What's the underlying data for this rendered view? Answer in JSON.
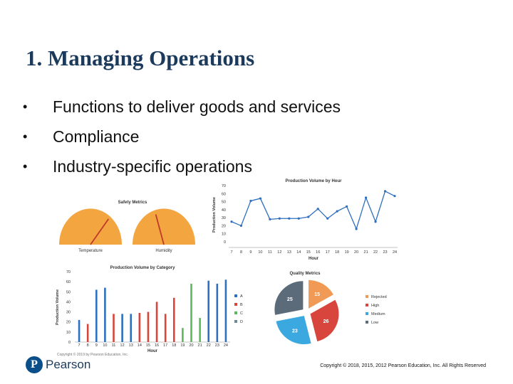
{
  "slide": {
    "title": "1. Managing Operations",
    "bullets": [
      {
        "marker": "•",
        "text": "Functions to deliver goods and services"
      },
      {
        "marker": "•",
        "text": "Compliance"
      },
      {
        "marker": "•",
        "text": "Industry-specific operations"
      }
    ]
  },
  "figure": {
    "small_copyright": "Copyright © 2019 by Pearson Education, Inc."
  },
  "footer": {
    "logo_mark": "P",
    "logo_text": "Pearson",
    "copyright": "Copyright © 2018, 2015, 2012 Pearson Education, Inc. All Rights Reserved"
  },
  "colors": {
    "title": "#1b3a5c",
    "gauge": "#f3a540",
    "needle": "#c0392b",
    "line": "#2e6fbf",
    "pearson_blue": "#0b4f8a"
  },
  "chart_data": [
    {
      "type": "gauge",
      "title": "Safety Metrics",
      "gauges": [
        {
          "label": "Temperature",
          "needle_deg": 35
        },
        {
          "label": "Humidity",
          "needle_deg": -15
        }
      ]
    },
    {
      "type": "line",
      "title": "Production Volume by Hour",
      "xlabel": "Hour",
      "ylabel": "Production Volume",
      "x": [
        7,
        8,
        9,
        10,
        11,
        12,
        13,
        14,
        15,
        16,
        17,
        18,
        19,
        20,
        21,
        22,
        23,
        24
      ],
      "values": [
        25,
        20,
        51,
        54,
        28,
        29,
        29,
        29,
        31,
        41,
        29,
        38,
        44,
        16,
        55,
        25,
        63,
        57
      ],
      "ylim": [
        0,
        70
      ],
      "yticks": [
        0,
        10,
        20,
        30,
        40,
        50,
        60,
        70
      ]
    },
    {
      "type": "bar",
      "title": "Production Volume by Category",
      "xlabel": "Hour",
      "ylabel": "Production Volume",
      "x": [
        7,
        8,
        9,
        10,
        11,
        12,
        13,
        14,
        15,
        16,
        17,
        18,
        19,
        20,
        21,
        22,
        23,
        24
      ],
      "bar_categories": [
        "A",
        "B",
        "A",
        "A",
        "B",
        "A",
        "A",
        "B",
        "B",
        "B",
        "B",
        "B",
        "C",
        "C",
        "C",
        "A",
        "A",
        "A"
      ],
      "values": [
        22,
        18,
        52,
        54,
        28,
        28,
        28,
        29,
        30,
        40,
        28,
        44,
        14,
        58,
        24,
        61,
        58,
        62
      ],
      "legend": [
        "A",
        "B",
        "C",
        "D"
      ],
      "legend_colors": [
        "#2e6fbf",
        "#d8453c",
        "#5bb85b",
        "#6b8b9d"
      ],
      "ylim": [
        0,
        70
      ],
      "yticks": [
        0,
        10,
        20,
        30,
        40,
        50,
        60,
        70
      ]
    },
    {
      "type": "pie",
      "title": "Quality Metrics",
      "slices": [
        {
          "label": "Rejected",
          "value": 15,
          "color": "#f09a55"
        },
        {
          "label": "High",
          "value": 26,
          "color": "#d8453c"
        },
        {
          "label": "Medium",
          "value": 23,
          "color": "#3ba9e0"
        },
        {
          "label": "Low",
          "value": 25,
          "color": "#5c6b7a"
        }
      ]
    }
  ]
}
